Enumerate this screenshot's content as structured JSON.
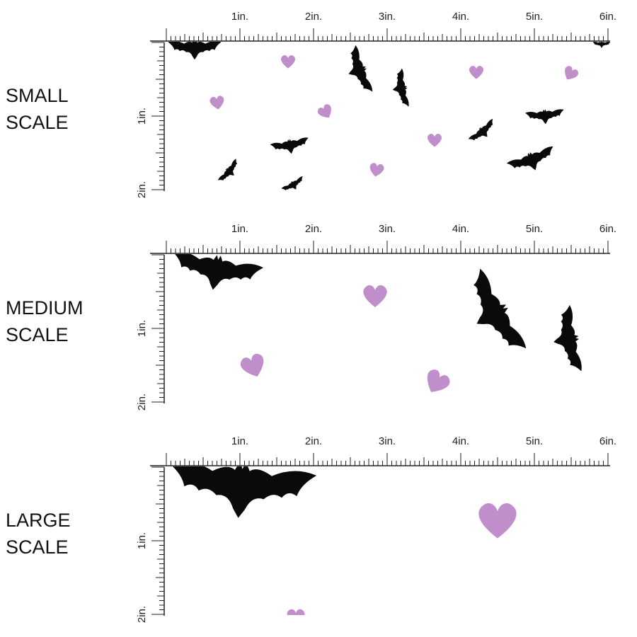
{
  "sections": [
    {
      "label": [
        "SMALL",
        "SCALE"
      ]
    },
    {
      "label": [
        "MEDIUM",
        "SCALE"
      ]
    },
    {
      "label": [
        "LARGE",
        "SCALE"
      ]
    }
  ],
  "ruler": {
    "x_labels": [
      "1in.",
      "2in.",
      "3in.",
      "4in.",
      "5in.",
      "6in."
    ],
    "y_labels": [
      "1in.",
      "2in."
    ]
  }
}
